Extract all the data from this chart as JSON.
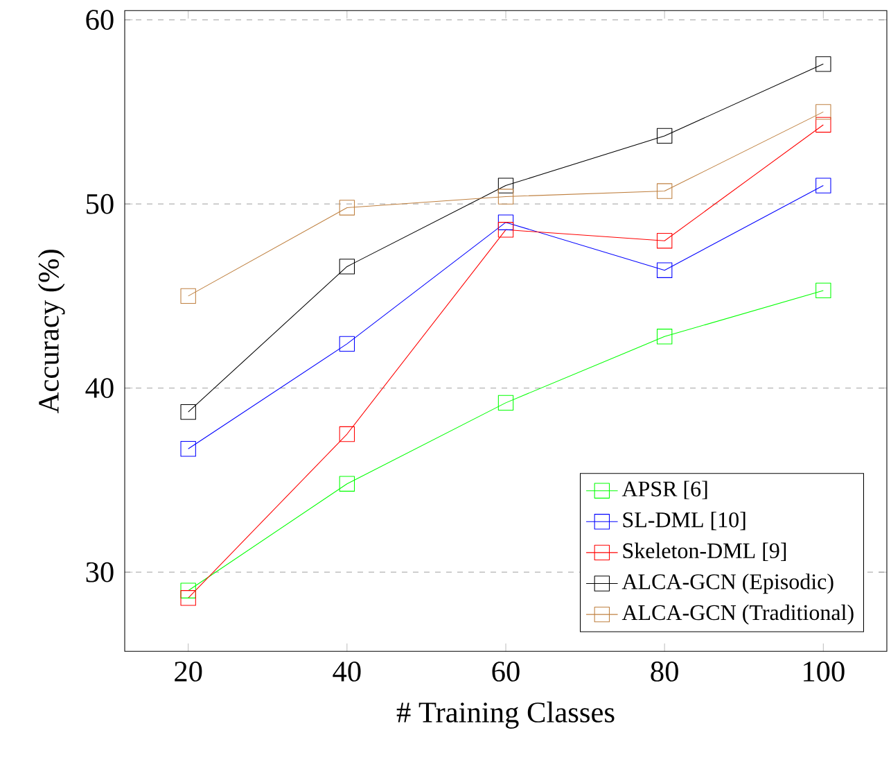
{
  "chart_data": {
    "type": "line",
    "xlabel": "# Training Classes",
    "ylabel": "Accuracy (%)",
    "x": [
      20,
      40,
      60,
      80,
      100
    ],
    "series": [
      {
        "name": "APSR [6]",
        "color": "#00ff00",
        "values": [
          29.0,
          34.8,
          39.2,
          42.8,
          45.3
        ]
      },
      {
        "name": "SL-DML [10]",
        "color": "#0000ff",
        "values": [
          36.7,
          42.4,
          49.0,
          46.4,
          51.0
        ]
      },
      {
        "name": "Skeleton-DML [9]",
        "color": "#ff0000",
        "values": [
          28.6,
          37.5,
          48.6,
          48.0,
          54.3
        ]
      },
      {
        "name": "ALCA-GCN (Episodic)",
        "color": "#000000",
        "values": [
          38.7,
          46.6,
          51.0,
          53.7,
          57.6
        ]
      },
      {
        "name": "ALCA-GCN (Traditional)",
        "color": "#bf8040",
        "values": [
          45.0,
          49.8,
          50.4,
          50.7,
          55.0
        ]
      }
    ],
    "xlim": [
      12,
      108
    ],
    "ylim": [
      25.7,
      60.5
    ],
    "xticks": [
      20,
      40,
      60,
      80,
      100
    ],
    "yticks": [
      30,
      40,
      50,
      60
    ],
    "grid": "y",
    "legend": "bottom right",
    "marker": "square",
    "line_style": "solid"
  }
}
